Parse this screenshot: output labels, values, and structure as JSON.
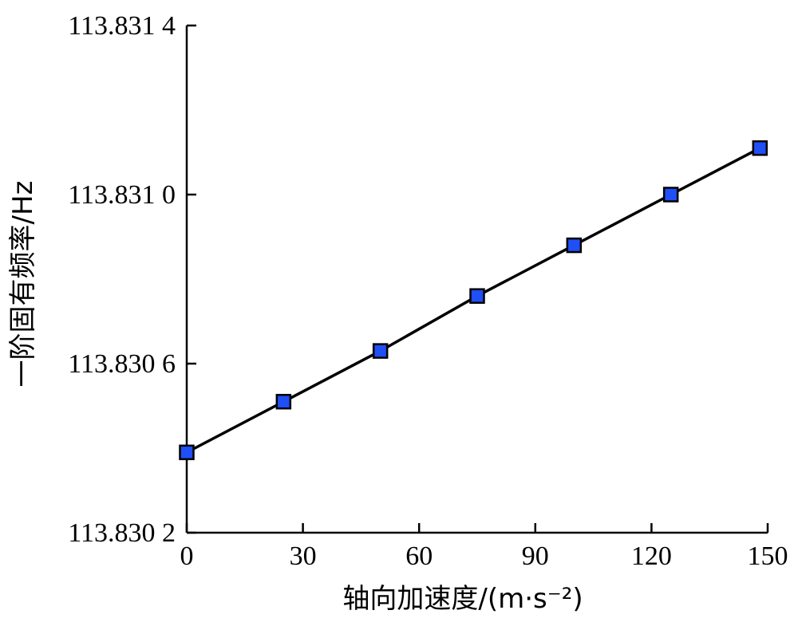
{
  "chart_data": {
    "type": "line",
    "title": "",
    "xlabel": "轴向加速度/(m·s⁻²)",
    "ylabel": "一阶固有频率/Hz",
    "xlim": [
      0,
      150
    ],
    "ylim": [
      113.8302,
      113.8314
    ],
    "x_ticks": [
      0,
      30,
      60,
      90,
      120,
      150
    ],
    "x_tick_labels": [
      "0",
      "30",
      "60",
      "90",
      "120",
      "150"
    ],
    "y_ticks": [
      113.8302,
      113.8306,
      113.831,
      113.8314
    ],
    "y_tick_labels": [
      "113.830 2",
      "113.830 6",
      "113.831 0",
      "113.831 4"
    ],
    "grid": false,
    "series": [
      {
        "x": [
          0,
          25,
          50,
          75,
          100,
          125,
          148
        ],
        "values": [
          113.83039,
          113.83051,
          113.83063,
          113.83076,
          113.83088,
          113.831,
          113.83111
        ],
        "line_color": "#000000",
        "marker": "square",
        "marker_color": "#1f4ff5"
      }
    ]
  }
}
